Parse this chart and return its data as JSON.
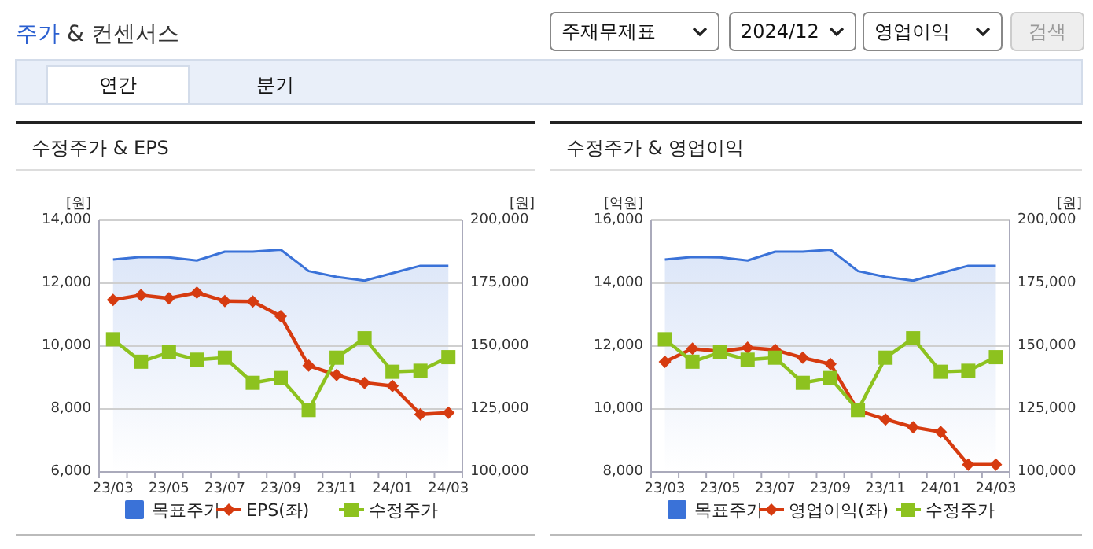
{
  "chart_data": [
    {
      "type": "other",
      "title": "주가 & 컨센서스",
      "annotations": [
        "주재무제표",
        "2024/12",
        "영업이익",
        "검색",
        "연간",
        "분기"
      ]
    },
    {
      "type": "line",
      "title": "수정주가 & EPS",
      "ylabel": "[원]",
      "y2label": "[원]",
      "categories": [
        "23/03",
        null,
        "23/05",
        null,
        "23/07",
        null,
        "23/09",
        null,
        "23/11",
        null,
        "24/01",
        null,
        "24/03"
      ],
      "ylim": [
        6000,
        14000
      ],
      "yticks": [
        {
          "value": 6000,
          "label": "6,000"
        },
        {
          "value": 8000,
          "label": "8,000"
        },
        {
          "value": 10000,
          "label": "10,000"
        },
        {
          "value": 12000,
          "label": "12,000"
        },
        {
          "value": 14000,
          "label": "14,000"
        }
      ],
      "y2lim": [
        100000,
        200000
      ],
      "y2ticks": [
        {
          "value": 100000,
          "label": "100,000"
        },
        {
          "value": 125000,
          "label": "125,000"
        },
        {
          "value": 150000,
          "label": "150,000"
        },
        {
          "value": 175000,
          "label": "175,000"
        },
        {
          "value": 200000,
          "label": "200,000"
        }
      ],
      "grid": "y",
      "legend": "bottom",
      "series": [
        {
          "name": "목표주가",
          "type": "area",
          "axis": "y2",
          "color": "#3a72d8",
          "marker": "none",
          "values": [
            184400,
            185400,
            185200,
            184000,
            187500,
            187500,
            188300,
            179800,
            177500,
            176000,
            179000,
            181900,
            181900
          ]
        },
        {
          "name": "EPS(좌)",
          "type": "line",
          "color": "#d63b10",
          "marker": "diamond",
          "values": [
            11470,
            11620,
            11520,
            11700,
            11430,
            11420,
            10950,
            9380,
            9080,
            8830,
            8730,
            7830,
            7880
          ]
        },
        {
          "name": "수정주가",
          "type": "line",
          "axis": "y2",
          "color": "#8dc21f",
          "marker": "square",
          "values": [
            152700,
            143800,
            147500,
            144600,
            145400,
            135400,
            137300,
            124600,
            145400,
            153100,
            139800,
            140200,
            145600
          ]
        }
      ]
    },
    {
      "type": "line",
      "title": "수정주가 & 영업이익",
      "ylabel": "[억원]",
      "y2label": "[원]",
      "categories": [
        "23/03",
        null,
        "23/05",
        null,
        "23/07",
        null,
        "23/09",
        null,
        "23/11",
        null,
        "24/01",
        null,
        "24/03"
      ],
      "ylim": [
        8000,
        16000
      ],
      "yticks": [
        {
          "value": 8000,
          "label": "8,000"
        },
        {
          "value": 10000,
          "label": "10,000"
        },
        {
          "value": 12000,
          "label": "12,000"
        },
        {
          "value": 14000,
          "label": "14,000"
        },
        {
          "value": 16000,
          "label": "16,000"
        }
      ],
      "y2lim": [
        100000,
        200000
      ],
      "y2ticks": [
        {
          "value": 100000,
          "label": "100,000"
        },
        {
          "value": 125000,
          "label": "125,000"
        },
        {
          "value": 150000,
          "label": "150,000"
        },
        {
          "value": 175000,
          "label": "175,000"
        },
        {
          "value": 200000,
          "label": "200,000"
        }
      ],
      "grid": "y",
      "legend": "bottom",
      "series": [
        {
          "name": "목표주가",
          "type": "area",
          "axis": "y2",
          "color": "#3a72d8",
          "marker": "none",
          "values": [
            184400,
            185400,
            185200,
            184000,
            187500,
            187500,
            188300,
            179800,
            177500,
            176000,
            179000,
            181900,
            181900
          ]
        },
        {
          "name": "영업이익(좌)",
          "type": "line",
          "color": "#d63b10",
          "marker": "diamond",
          "values": [
            11500,
            11920,
            11830,
            11950,
            11880,
            11630,
            11430,
            9950,
            9670,
            9420,
            9270,
            8230,
            8230
          ]
        },
        {
          "name": "수정주가",
          "type": "line",
          "axis": "y2",
          "color": "#8dc21f",
          "marker": "square",
          "values": [
            152700,
            143800,
            147500,
            144600,
            145400,
            135400,
            137300,
            124600,
            145400,
            153100,
            139800,
            140200,
            145600
          ]
        }
      ]
    }
  ]
}
